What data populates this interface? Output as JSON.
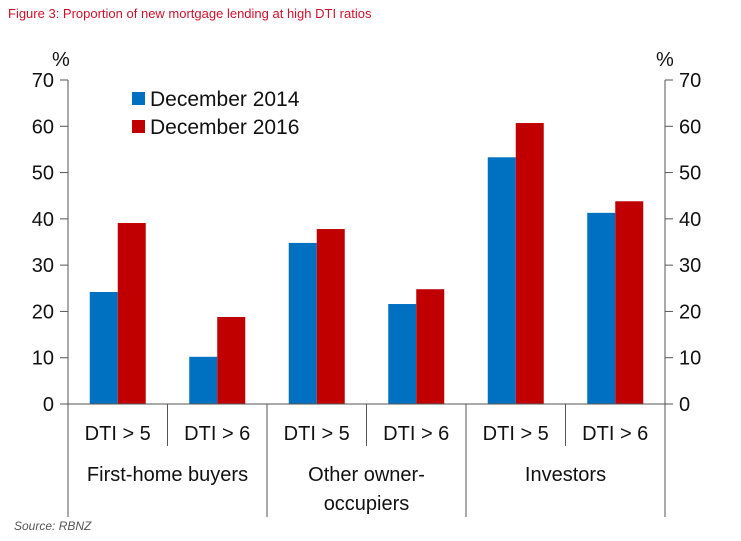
{
  "title": "Figure 3:  Proportion of new mortgage lending at high DTI ratios",
  "source": "Source: RBNZ",
  "chart_data": {
    "type": "bar",
    "ylabel_left": "%",
    "ylabel_right": "%",
    "ylim": [
      0,
      70
    ],
    "yticks": [
      0,
      10,
      20,
      30,
      40,
      50,
      60,
      70
    ],
    "categories": [
      "DTI > 5",
      "DTI > 6",
      "DTI > 5",
      "DTI > 6",
      "DTI > 5",
      "DTI > 6"
    ],
    "groups": [
      {
        "label": "First-home buyers",
        "lines": [
          "First-home buyers"
        ]
      },
      {
        "label": "Other owner-occupiers",
        "lines": [
          "Other owner-",
          "occupiers"
        ]
      },
      {
        "label": "Investors",
        "lines": [
          "Investors"
        ]
      }
    ],
    "series": [
      {
        "name": "December 2014",
        "color": "#0070c0",
        "values": [
          24.2,
          10.2,
          34.8,
          21.6,
          53.3,
          41.3
        ]
      },
      {
        "name": "December 2016",
        "color": "#c00000",
        "values": [
          39.1,
          18.8,
          37.8,
          24.8,
          60.7,
          43.8
        ]
      }
    ],
    "legend": "top-left",
    "grid": false
  }
}
